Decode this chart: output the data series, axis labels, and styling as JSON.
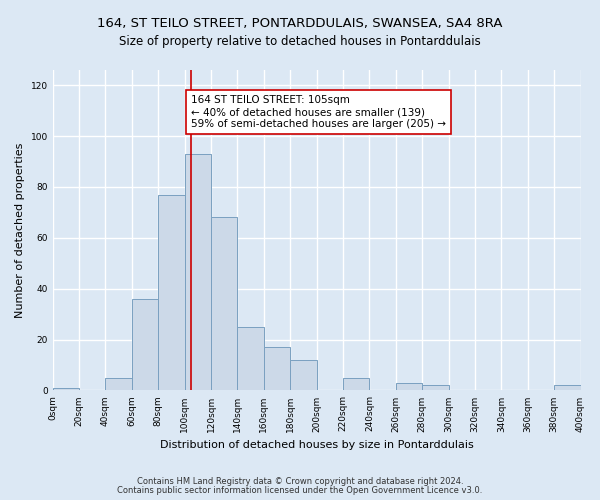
{
  "title": "164, ST TEILO STREET, PONTARDDULAIS, SWANSEA, SA4 8RA",
  "subtitle": "Size of property relative to detached houses in Pontarddulais",
  "xlabel": "Distribution of detached houses by size in Pontarddulais",
  "ylabel": "Number of detached properties",
  "bin_edges": [
    0,
    20,
    40,
    60,
    80,
    100,
    120,
    140,
    160,
    180,
    200,
    220,
    240,
    260,
    280,
    300,
    320,
    340,
    360,
    380,
    400
  ],
  "bar_heights": [
    1,
    0,
    5,
    36,
    77,
    93,
    68,
    25,
    17,
    12,
    0,
    5,
    0,
    3,
    2,
    0,
    0,
    0,
    0,
    2
  ],
  "bar_color": "#ccd9e8",
  "bar_edgecolor": "#7aa0c0",
  "vline_x": 105,
  "vline_color": "#cc0000",
  "ylim": [
    0,
    126
  ],
  "yticks": [
    0,
    20,
    40,
    60,
    80,
    100,
    120
  ],
  "annotation_title": "164 ST TEILO STREET: 105sqm",
  "annotation_line1": "← 40% of detached houses are smaller (139)",
  "annotation_line2": "59% of semi-detached houses are larger (205) →",
  "annotation_box_color": "#ffffff",
  "annotation_box_edgecolor": "#cc0000",
  "footer_line1": "Contains HM Land Registry data © Crown copyright and database right 2024.",
  "footer_line2": "Contains public sector information licensed under the Open Government Licence v3.0.",
  "background_color": "#dce8f4",
  "plot_bg_color": "#dce8f4",
  "grid_color": "#ffffff",
  "title_fontsize": 9.5,
  "subtitle_fontsize": 8.5,
  "axis_label_fontsize": 8,
  "tick_fontsize": 6.5,
  "annotation_fontsize": 7.5,
  "footer_fontsize": 6
}
